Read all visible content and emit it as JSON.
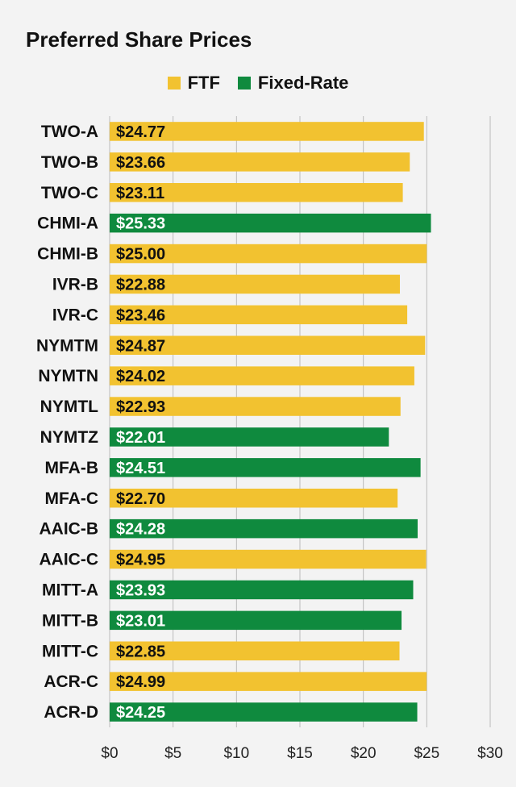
{
  "colors": {
    "ftf": "#f2c230",
    "fixed": "#0f8a3e",
    "grid": "#bbbbbb",
    "background": "#f3f3f3"
  },
  "chart_data": {
    "type": "bar",
    "orientation": "horizontal",
    "title": "Preferred Share Prices",
    "legend": {
      "position": "top-center",
      "entries": [
        "FTF",
        "Fixed-Rate"
      ]
    },
    "categories": [
      "TWO-A",
      "TWO-B",
      "TWO-C",
      "CHMI-A",
      "CHMI-B",
      "IVR-B",
      "IVR-C",
      "NYMTM",
      "NYMTN",
      "NYMTL",
      "NYMTZ",
      "MFA-B",
      "MFA-C",
      "AAIC-B",
      "AAIC-C",
      "MITT-A",
      "MITT-B",
      "MITT-C",
      "ACR-C",
      "ACR-D"
    ],
    "values": [
      24.77,
      23.66,
      23.11,
      25.33,
      25.0,
      22.88,
      23.46,
      24.87,
      24.02,
      22.93,
      22.01,
      24.51,
      22.7,
      24.28,
      24.95,
      23.93,
      23.01,
      22.85,
      24.99,
      24.25
    ],
    "value_labels": [
      "$24.77",
      "$23.66",
      "$23.11",
      "$25.33",
      "$25.00",
      "$22.88",
      "$23.46",
      "$24.87",
      "$24.02",
      "$22.93",
      "$22.01",
      "$24.51",
      "$22.70",
      "$24.28",
      "$24.95",
      "$23.93",
      "$23.01",
      "$22.85",
      "$24.99",
      "$24.25"
    ],
    "rate_type": [
      "FTF",
      "FTF",
      "FTF",
      "Fixed-Rate",
      "FTF",
      "FTF",
      "FTF",
      "FTF",
      "FTF",
      "FTF",
      "Fixed-Rate",
      "Fixed-Rate",
      "FTF",
      "Fixed-Rate",
      "FTF",
      "Fixed-Rate",
      "Fixed-Rate",
      "FTF",
      "FTF",
      "Fixed-Rate"
    ],
    "xlim": [
      0,
      30
    ],
    "xticks": [
      0,
      5,
      10,
      15,
      20,
      25,
      30
    ],
    "xtick_labels": [
      "$0",
      "$5",
      "$10",
      "$15",
      "$20",
      "$25",
      "$30"
    ],
    "grid": true
  }
}
